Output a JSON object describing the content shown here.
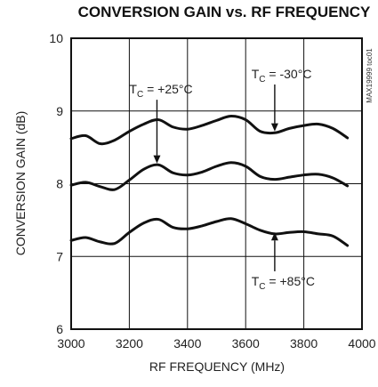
{
  "chart_data": {
    "type": "line",
    "title": "CONVERSION GAIN vs. RF FREQUENCY",
    "xlabel": "RF FREQUENCY (MHz)",
    "ylabel": "CONVERSION GAIN (dB)",
    "xlim": [
      3000,
      4000
    ],
    "ylim": [
      6,
      10
    ],
    "xticks": [
      "3000",
      "3200",
      "3400",
      "3600",
      "3800",
      "4000"
    ],
    "yticks": [
      "6",
      "7",
      "8",
      "9",
      "10"
    ],
    "grid": true,
    "part_code": "MAX19999 toc01",
    "x": [
      3000,
      3050,
      3100,
      3150,
      3200,
      3250,
      3300,
      3350,
      3400,
      3450,
      3500,
      3550,
      3600,
      3650,
      3700,
      3750,
      3800,
      3850,
      3900,
      3950
    ],
    "series": [
      {
        "name": "TC = -30°C",
        "values": [
          8.62,
          8.66,
          8.55,
          8.6,
          8.72,
          8.82,
          8.88,
          8.78,
          8.75,
          8.8,
          8.87,
          8.93,
          8.88,
          8.72,
          8.7,
          8.76,
          8.8,
          8.82,
          8.76,
          8.63
        ]
      },
      {
        "name": "TC = +25°C",
        "values": [
          7.98,
          8.02,
          7.96,
          7.92,
          8.05,
          8.2,
          8.26,
          8.15,
          8.12,
          8.16,
          8.24,
          8.29,
          8.24,
          8.1,
          8.06,
          8.09,
          8.12,
          8.13,
          8.08,
          7.97
        ]
      },
      {
        "name": "TC = +85°C",
        "values": [
          7.22,
          7.26,
          7.2,
          7.18,
          7.33,
          7.46,
          7.51,
          7.4,
          7.38,
          7.42,
          7.48,
          7.52,
          7.45,
          7.36,
          7.31,
          7.33,
          7.34,
          7.31,
          7.28,
          7.15
        ]
      }
    ],
    "annotations": [
      {
        "prefix": "T",
        "sub": "C",
        "suffix": " = +25°C",
        "x": 3200,
        "y": 9.24,
        "target_x": 3295,
        "target_y": 8.28
      },
      {
        "prefix": "T",
        "sub": "C",
        "suffix": " = -30°C",
        "x": 3620,
        "y": 9.45,
        "target_x": 3700,
        "target_y": 8.72
      },
      {
        "prefix": "T",
        "sub": "C",
        "suffix": " = +85°C",
        "x": 3620,
        "y": 6.6,
        "target_x": 3700,
        "target_y": 7.33
      }
    ]
  }
}
